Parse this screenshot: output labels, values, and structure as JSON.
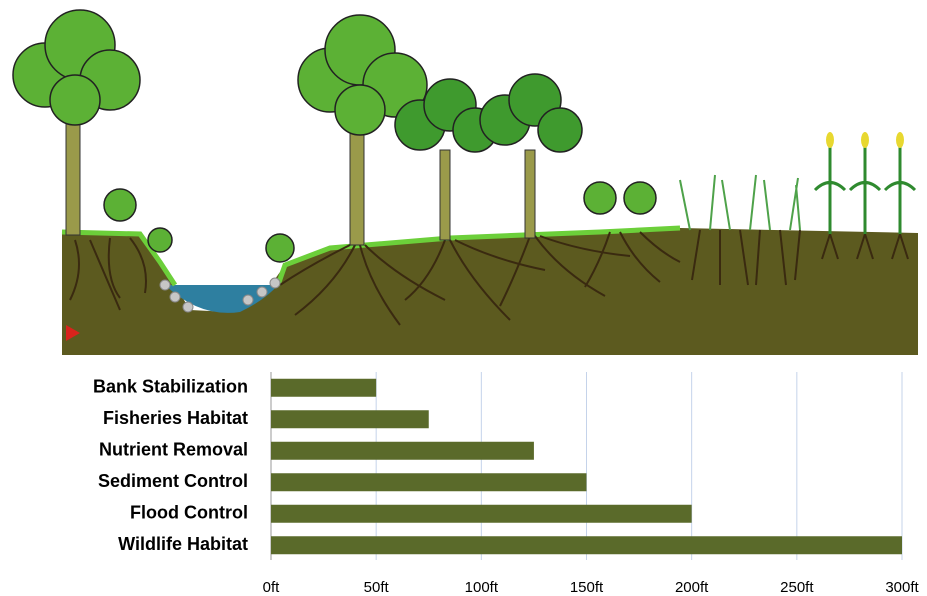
{
  "chart_data": {
    "type": "bar",
    "orientation": "horizontal",
    "categories": [
      "Bank Stabilization",
      "Fisheries Habitat",
      "Nutrient Removal",
      "Sediment Control",
      "Flood Control",
      "Wildlife Habitat"
    ],
    "values": [
      50,
      75,
      125,
      150,
      200,
      300
    ],
    "color": "#5a6a2a",
    "xlim": [
      0,
      300
    ],
    "xticks": [
      {
        "value": 0,
        "label": "0ft"
      },
      {
        "value": 50,
        "label": "50ft"
      },
      {
        "value": 100,
        "label": "100ft"
      },
      {
        "value": 150,
        "label": "150ft"
      },
      {
        "value": 200,
        "label": "200ft"
      },
      {
        "value": 250,
        "label": "250ft"
      },
      {
        "value": 300,
        "label": "300ft"
      }
    ],
    "grid": true
  }
}
